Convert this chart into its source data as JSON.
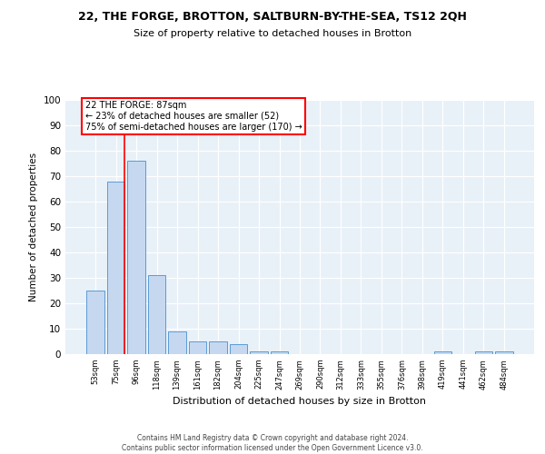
{
  "title1": "22, THE FORGE, BROTTON, SALTBURN-BY-THE-SEA, TS12 2QH",
  "title2": "Size of property relative to detached houses in Brotton",
  "xlabel": "Distribution of detached houses by size in Brotton",
  "ylabel": "Number of detached properties",
  "categories": [
    "53sqm",
    "75sqm",
    "96sqm",
    "118sqm",
    "139sqm",
    "161sqm",
    "182sqm",
    "204sqm",
    "225sqm",
    "247sqm",
    "269sqm",
    "290sqm",
    "312sqm",
    "333sqm",
    "355sqm",
    "376sqm",
    "398sqm",
    "419sqm",
    "441sqm",
    "462sqm",
    "484sqm"
  ],
  "values": [
    25,
    68,
    76,
    31,
    9,
    5,
    5,
    4,
    1,
    1,
    0,
    0,
    0,
    0,
    0,
    0,
    0,
    1,
    0,
    1,
    1
  ],
  "bar_color": "#c5d8f0",
  "bar_edge_color": "#5b9bd5",
  "vline_color": "red",
  "annotation_text": "22 THE FORGE: 87sqm\n← 23% of detached houses are smaller (52)\n75% of semi-detached houses are larger (170) →",
  "annotation_box_color": "white",
  "annotation_box_edge_color": "red",
  "ylim": [
    0,
    100
  ],
  "yticks": [
    0,
    10,
    20,
    30,
    40,
    50,
    60,
    70,
    80,
    90,
    100
  ],
  "background_color": "#e8f0f8",
  "grid_color": "white",
  "footer": "Contains HM Land Registry data © Crown copyright and database right 2024.\nContains public sector information licensed under the Open Government Licence v3.0."
}
